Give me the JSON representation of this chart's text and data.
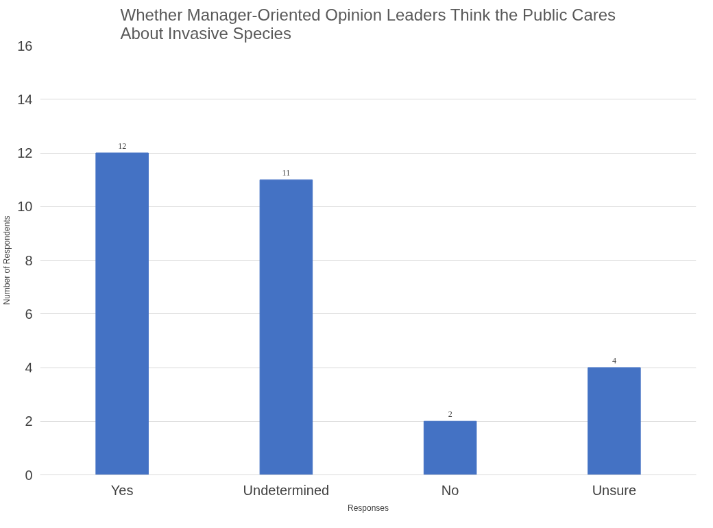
{
  "chart_data": {
    "type": "bar",
    "title": "Whether Manager-Oriented Opinion Leaders Think the Public Cares\nAbout Invasive Species",
    "xlabel": "Responses",
    "ylabel": "Number of Respondents",
    "categories": [
      "Yes",
      "Undetermined",
      "No",
      "Unsure"
    ],
    "values": [
      12,
      11,
      2,
      4
    ],
    "color": "#4472c4",
    "data_labels": true,
    "ylim": [
      0,
      16
    ],
    "yticks": [
      0,
      2,
      4,
      6,
      8,
      10,
      12,
      14,
      16
    ],
    "grid": "y"
  }
}
